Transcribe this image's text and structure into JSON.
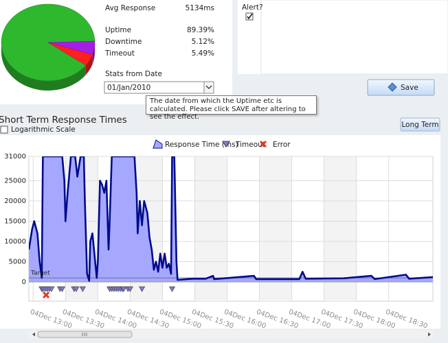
{
  "ui": {
    "avg_response_label": "Avg Response",
    "avg_response": "5134ms",
    "stats_from_label": "Stats from Date",
    "date": "01/Jan/2010",
    "alert_label": "Alert?",
    "alert_checked": true,
    "save": "Save",
    "tooltip": "The date from which the Uptime etc is calculated. Please click SAVE after altering to see the effect.",
    "long_term": "Long Term",
    "log_scale_label": "Logarithmic Scale"
  },
  "chart_data": [
    {
      "type": "pie",
      "categories": [
        "Uptime",
        "Downtime",
        "Timeout"
      ],
      "values": [
        89.39,
        5.12,
        5.49
      ],
      "value_labels": [
        "89.39%",
        "5.12%",
        "5.49%"
      ],
      "colors": [
        "#2eb82e",
        "#ff1f1f",
        "#a41fe6"
      ],
      "label_colors": [
        "#228b22",
        "#b22222",
        "#8b1a9b"
      ]
    },
    {
      "type": "line",
      "title": "Short Term Response Times",
      "log_scale": false,
      "grid": true,
      "x": [
        776,
        779,
        781,
        784,
        786,
        788,
        789,
        807,
        809,
        810,
        812,
        815,
        819,
        821,
        824,
        827,
        828,
        830,
        832,
        833,
        835,
        839,
        840,
        842,
        844,
        846,
        848,
        850,
        851,
        853,
        874,
        876,
        877,
        879,
        881,
        883,
        886,
        888,
        890,
        892,
        894,
        896,
        898,
        900,
        902,
        904,
        906,
        908,
        909,
        911,
        913,
        914,
        928,
        940,
        947,
        948,
        985,
        987,
        1027,
        1030,
        1033,
        1068,
        1094,
        1097,
        1126,
        1129,
        1151
      ],
      "series": [
        {
          "name": "Response Time (ms)",
          "color": "#000c8c",
          "fill": "#a6a8ff",
          "values": [
            8000,
            13000,
            15000,
            12000,
            5000,
            1000,
            31000,
            31000,
            25000,
            15000,
            22000,
            31000,
            31000,
            26000,
            31000,
            31000,
            20000,
            2000,
            300,
            10000,
            12000,
            1000,
            5000,
            25000,
            24000,
            22000,
            25000,
            8000,
            15000,
            31000,
            31000,
            22000,
            12000,
            20000,
            14000,
            20000,
            17000,
            11000,
            8000,
            3000,
            5000,
            2500,
            7000,
            3500,
            7000,
            3500,
            4500,
            2000,
            31000,
            31000,
            5000,
            500,
            800,
            800,
            1500,
            700,
            1500,
            700,
            700,
            2500,
            800,
            900,
            1500,
            700,
            1800,
            800,
            1200
          ]
        }
      ],
      "markers": [
        {
          "name": "Timeout",
          "color": "#7f7bd6",
          "x": [
            788,
            789,
            791,
            793,
            795,
            797,
            805,
            807,
            818,
            820,
            826,
            851,
            853,
            855,
            857,
            859,
            861,
            863,
            864,
            868,
            870,
            881,
            909
          ]
        },
        {
          "name": "Error",
          "color": "#e03a2a",
          "x": [
            792
          ]
        }
      ],
      "target": {
        "label": "Target",
        "value": 1000
      },
      "xlim": [
        776,
        1151
      ],
      "xticks": [
        {
          "value": 780,
          "label": "04Dec 13:00"
        },
        {
          "value": 810,
          "label": "04Dec 13:30"
        },
        {
          "value": 840,
          "label": "04Dec 14:00"
        },
        {
          "value": 870,
          "label": "04Dec 14:30"
        },
        {
          "value": 900,
          "label": "04Dec 15:00"
        },
        {
          "value": 930,
          "label": "04Dec 15:30"
        },
        {
          "value": 960,
          "label": "04Dec 16:00"
        },
        {
          "value": 990,
          "label": "04Dec 16:30"
        },
        {
          "value": 1020,
          "label": "04Dec 17:00"
        },
        {
          "value": 1050,
          "label": "04Dec 17:30"
        },
        {
          "value": 1080,
          "label": "04Dec 18:00"
        },
        {
          "value": 1110,
          "label": "04Dec 18:30"
        }
      ],
      "ylim": [
        0,
        31000
      ],
      "yticks": [
        0,
        5000,
        10000,
        15000,
        20000,
        25000,
        31000
      ]
    }
  ]
}
